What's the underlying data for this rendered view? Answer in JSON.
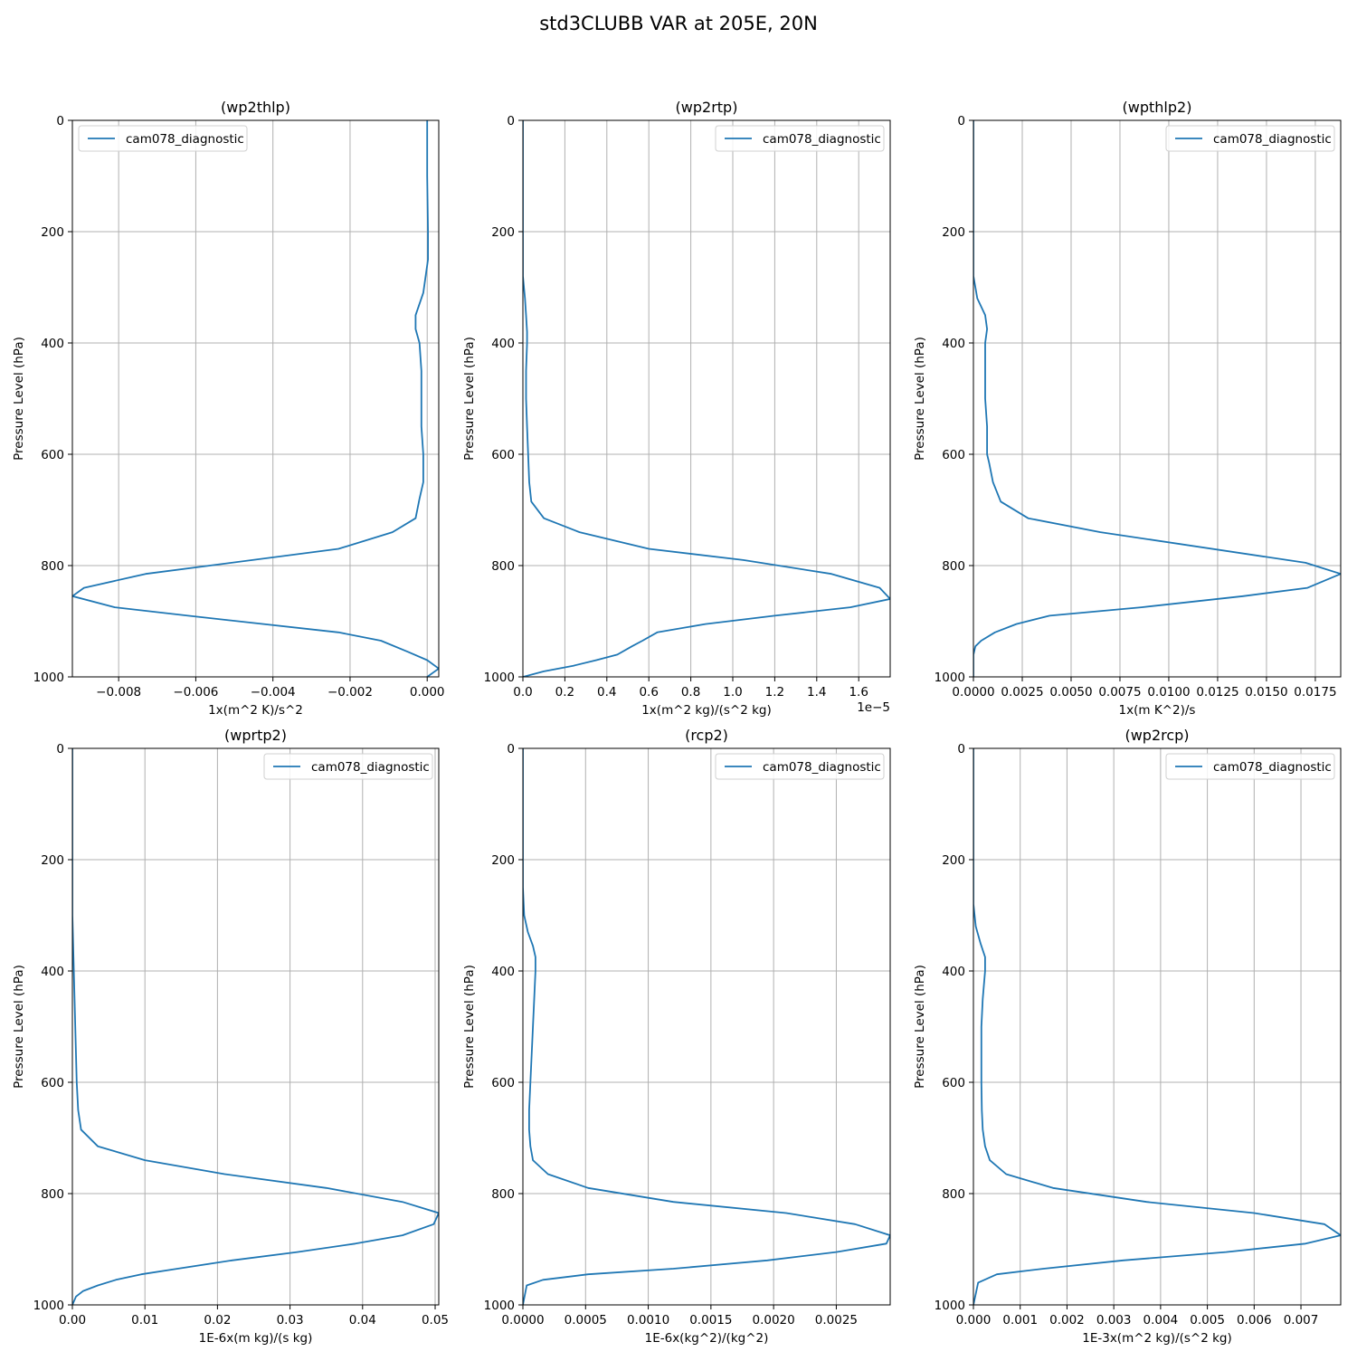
{
  "suptitle": "std3CLUBB VAR at 205E, 20N",
  "colors": {
    "line": "#1f77b4",
    "grid": "#b0b0b0",
    "axis": "#000000"
  },
  "chart_data": [
    {
      "type": "line",
      "title": "(wp2thlp)",
      "xlabel": "1x(m^2 K)/s^2",
      "ylabel": "Pressure Level (hPa)",
      "xlim": [
        -0.0092,
        0.0003
      ],
      "ylim": [
        1000,
        0
      ],
      "xticks": [
        -0.008,
        -0.006,
        -0.004,
        -0.002,
        0.0
      ],
      "xtick_labels": [
        "−0.008",
        "−0.006",
        "−0.004",
        "−0.002",
        "0.000"
      ],
      "yticks": [
        0,
        200,
        400,
        600,
        800,
        1000
      ],
      "offset_label": "",
      "grid": true,
      "legend_loc": "upper left",
      "series": [
        {
          "name": "cam078_diagnostic",
          "x": [
            0.0,
            0.0,
            2e-05,
            2e-05,
            -0.0001,
            -0.0003,
            -0.0003,
            -0.0002,
            -0.00015,
            -0.00015,
            -0.00015,
            -0.0001,
            -0.0001,
            -0.0002,
            -0.0003,
            -0.0009,
            -0.0023,
            -0.0073,
            -0.0089,
            -0.0092,
            -0.0081,
            -0.0062,
            -0.0023,
            -0.0012,
            -0.0005,
            0.0,
            0.0003,
            0.0
          ],
          "y": [
            0,
            100,
            200,
            250,
            310,
            350,
            375,
            400,
            450,
            500,
            550,
            600,
            650,
            680,
            715,
            740,
            770,
            815,
            840,
            855,
            875,
            890,
            920,
            935,
            955,
            970,
            985,
            1000
          ]
        }
      ]
    },
    {
      "type": "line",
      "title": "(wp2rtp)",
      "xlabel": "1x(m^2 kg)/(s^2 kg)",
      "ylabel": "Pressure Level (hPa)",
      "xlim": [
        0.0,
        1.75
      ],
      "ylim": [
        1000,
        0
      ],
      "xticks": [
        0.0,
        0.2,
        0.4,
        0.6,
        0.8,
        1.0,
        1.2,
        1.4,
        1.6
      ],
      "xtick_labels": [
        "0.0",
        "0.2",
        "0.4",
        "0.6",
        "0.8",
        "1.0",
        "1.2",
        "1.4",
        "1.6"
      ],
      "yticks": [
        0,
        200,
        400,
        600,
        800,
        1000
      ],
      "offset_label": "1e−5",
      "grid": true,
      "legend_loc": "upper right",
      "series": [
        {
          "name": "cam078_diagnostic",
          "x": [
            0.0,
            0.0,
            0.0,
            0.0,
            0.01,
            0.015,
            0.02,
            0.02,
            0.015,
            0.015,
            0.02,
            0.025,
            0.03,
            0.04,
            0.1,
            0.27,
            0.6,
            1.05,
            1.47,
            1.7,
            1.75,
            1.56,
            1.2,
            0.87,
            0.64,
            0.57,
            0.52,
            0.45,
            0.35,
            0.24,
            0.1,
            0.0
          ],
          "y": [
            0,
            100,
            200,
            280,
            320,
            350,
            380,
            400,
            450,
            500,
            550,
            600,
            650,
            685,
            715,
            740,
            770,
            790,
            815,
            840,
            860,
            875,
            890,
            905,
            920,
            935,
            945,
            960,
            970,
            980,
            990,
            1000
          ]
        }
      ]
    },
    {
      "type": "line",
      "title": "(wpthlp2)",
      "xlabel": "1x(m K^2)/s",
      "ylabel": "Pressure Level (hPa)",
      "xlim": [
        0.0,
        0.0188
      ],
      "ylim": [
        1000,
        0
      ],
      "xticks": [
        0.0,
        0.0025,
        0.005,
        0.0075,
        0.01,
        0.0125,
        0.015,
        0.0175
      ],
      "xtick_labels": [
        "0.0000",
        "0.0025",
        "0.0050",
        "0.0075",
        "0.0100",
        "0.0125",
        "0.0150",
        "0.0175"
      ],
      "yticks": [
        0,
        200,
        400,
        600,
        800,
        1000
      ],
      "offset_label": "",
      "grid": true,
      "legend_loc": "upper right",
      "series": [
        {
          "name": "cam078_diagnostic",
          "x": [
            0.0,
            0.0,
            0.0,
            0.0,
            0.0002,
            0.0006,
            0.0007,
            0.0006,
            0.0006,
            0.0006,
            0.0007,
            0.0007,
            0.0008,
            0.001,
            0.0014,
            0.0028,
            0.0065,
            0.017,
            0.0188,
            0.0171,
            0.0138,
            0.0086,
            0.0039,
            0.0022,
            0.0011,
            0.0004,
            0.0001,
            0.0,
            0.0
          ],
          "y": [
            0,
            100,
            200,
            280,
            320,
            350,
            375,
            400,
            450,
            500,
            550,
            600,
            615,
            650,
            685,
            715,
            740,
            795,
            815,
            840,
            855,
            875,
            890,
            905,
            920,
            935,
            945,
            960,
            1000
          ]
        }
      ]
    },
    {
      "type": "line",
      "title": "(wprtp2)",
      "xlabel": "1E-6x(m kg)/(s kg)",
      "ylabel": "Pressure Level (hPa)",
      "xlim": [
        0.0,
        0.0505
      ],
      "ylim": [
        1000,
        0
      ],
      "xticks": [
        0.0,
        0.01,
        0.02,
        0.03,
        0.04,
        0.05
      ],
      "xtick_labels": [
        "0.00",
        "0.01",
        "0.02",
        "0.03",
        "0.04",
        "0.05"
      ],
      "yticks": [
        0,
        200,
        400,
        600,
        800,
        1000
      ],
      "offset_label": "",
      "grid": true,
      "legend_loc": "upper right",
      "series": [
        {
          "name": "cam078_diagnostic",
          "x": [
            0.0,
            0.0,
            0.0,
            0.0,
            0.0001,
            0.0002,
            0.0003,
            0.0004,
            0.0005,
            0.0006,
            0.0008,
            0.0012,
            0.0035,
            0.01,
            0.021,
            0.035,
            0.0455,
            0.0505,
            0.0498,
            0.0455,
            0.039,
            0.031,
            0.022,
            0.0145,
            0.0095,
            0.006,
            0.0035,
            0.0015,
            0.0005,
            0.0
          ],
          "y": [
            0,
            100,
            200,
            300,
            350,
            400,
            450,
            500,
            550,
            600,
            650,
            685,
            715,
            740,
            765,
            790,
            815,
            835,
            855,
            875,
            890,
            905,
            920,
            935,
            945,
            955,
            965,
            975,
            985,
            1000
          ]
        }
      ]
    },
    {
      "type": "line",
      "title": "(rcp2)",
      "xlabel": "1E-6x(kg^2)/(kg^2)",
      "ylabel": "Pressure Level (hPa)",
      "xlim": [
        0.0,
        0.00293
      ],
      "ylim": [
        1000,
        0
      ],
      "xticks": [
        0.0,
        0.0005,
        0.001,
        0.0015,
        0.002,
        0.0025
      ],
      "xtick_labels": [
        "0.0000",
        "0.0005",
        "0.0010",
        "0.0015",
        "0.0020",
        "0.0025"
      ],
      "yticks": [
        0,
        200,
        400,
        600,
        800,
        1000
      ],
      "offset_label": "",
      "grid": true,
      "legend_loc": "upper right",
      "series": [
        {
          "name": "cam078_diagnostic",
          "x": [
            0.0,
            0.0,
            0.0,
            0.0,
            1e-05,
            4e-05,
            8e-05,
            0.0001,
            0.0001,
            9e-05,
            8e-05,
            7e-05,
            6e-05,
            5e-05,
            5e-05,
            6e-05,
            8e-05,
            0.0002,
            0.00052,
            0.0012,
            0.0021,
            0.00265,
            0.00293,
            0.0029,
            0.0025,
            0.00195,
            0.0012,
            0.00052,
            0.00016,
            3e-05,
            0.0
          ],
          "y": [
            0,
            100,
            200,
            250,
            300,
            330,
            355,
            375,
            400,
            450,
            500,
            550,
            600,
            650,
            685,
            715,
            740,
            765,
            790,
            815,
            835,
            855,
            875,
            890,
            905,
            920,
            935,
            945,
            955,
            965,
            1000
          ]
        }
      ]
    },
    {
      "type": "line",
      "title": "(wp2rcp)",
      "xlabel": "1E-3x(m^2 kg)/(s^2 kg)",
      "ylabel": "Pressure Level (hPa)",
      "xlim": [
        0.0,
        0.00785
      ],
      "ylim": [
        1000,
        0
      ],
      "xticks": [
        0.0,
        0.001,
        0.002,
        0.003,
        0.004,
        0.005,
        0.006,
        0.007
      ],
      "xtick_labels": [
        "0.000",
        "0.001",
        "0.002",
        "0.003",
        "0.004",
        "0.005",
        "0.006",
        "0.007"
      ],
      "yticks": [
        0,
        200,
        400,
        600,
        800,
        1000
      ],
      "offset_label": "",
      "grid": true,
      "legend_loc": "upper right",
      "series": [
        {
          "name": "cam078_diagnostic",
          "x": [
            0.0,
            0.0,
            0.0,
            0.0,
            5e-05,
            0.00015,
            0.00025,
            0.00025,
            0.0002,
            0.00017,
            0.00017,
            0.00017,
            0.00018,
            0.0002,
            0.00025,
            0.00035,
            0.0007,
            0.0017,
            0.0037,
            0.006,
            0.0075,
            0.00785,
            0.0071,
            0.0054,
            0.0032,
            0.0015,
            0.0005,
            0.0001,
            0.0
          ],
          "y": [
            0,
            100,
            200,
            280,
            320,
            350,
            375,
            400,
            450,
            500,
            550,
            600,
            650,
            685,
            715,
            740,
            765,
            790,
            815,
            835,
            855,
            875,
            890,
            905,
            920,
            935,
            945,
            960,
            1000
          ]
        }
      ]
    }
  ]
}
